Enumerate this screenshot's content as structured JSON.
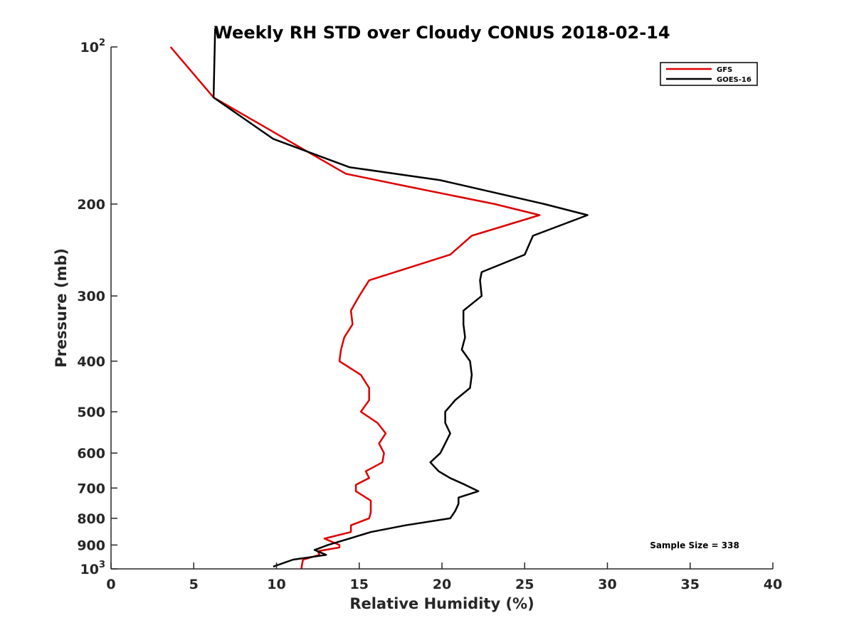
{
  "chart_data": {
    "type": "line",
    "title": "Weekly RH STD over Cloudy CONUS 2018-02-14",
    "xlabel": "Relative Humidity (%)",
    "ylabel": "Pressure (mb)",
    "xlim": [
      0,
      40
    ],
    "ylim": [
      100,
      1000
    ],
    "y_scale": "log",
    "y_reversed": true,
    "xticks": [
      0,
      5,
      10,
      15,
      20,
      25,
      30,
      35,
      40
    ],
    "yticks": [
      {
        "value": 100,
        "base": "10",
        "exp": "2"
      },
      {
        "value": 200,
        "label": "200"
      },
      {
        "value": 300,
        "label": "300"
      },
      {
        "value": 400,
        "label": "400"
      },
      {
        "value": 500,
        "label": "500"
      },
      {
        "value": 600,
        "label": "600"
      },
      {
        "value": 700,
        "label": "700"
      },
      {
        "value": 800,
        "label": "800"
      },
      {
        "value": 900,
        "label": "900"
      },
      {
        "value": 1000,
        "base": "10",
        "exp": "3"
      }
    ],
    "grid": false,
    "legend_position": "top-right",
    "annotation": "Sample Size = 338",
    "series": [
      {
        "name": "GFS",
        "color": "#dd0000",
        "points": [
          [
            3.6,
            100
          ],
          [
            6.2,
            125
          ],
          [
            14.2,
            175
          ],
          [
            17.9,
            185
          ],
          [
            23.2,
            200
          ],
          [
            25.9,
            210
          ],
          [
            21.8,
            230
          ],
          [
            20.5,
            250
          ],
          [
            15.6,
            280
          ],
          [
            15.0,
            300
          ],
          [
            14.5,
            320
          ],
          [
            14.6,
            340
          ],
          [
            14.1,
            360
          ],
          [
            13.9,
            380
          ],
          [
            13.8,
            400
          ],
          [
            15.1,
            425
          ],
          [
            15.6,
            450
          ],
          [
            15.6,
            475
          ],
          [
            15.1,
            500
          ],
          [
            16.1,
            525
          ],
          [
            16.6,
            550
          ],
          [
            16.2,
            575
          ],
          [
            16.5,
            600
          ],
          [
            16.4,
            625
          ],
          [
            15.4,
            650
          ],
          [
            15.6,
            670
          ],
          [
            14.8,
            690
          ],
          [
            14.8,
            710
          ],
          [
            15.7,
            740
          ],
          [
            15.7,
            760
          ],
          [
            15.7,
            780
          ],
          [
            15.6,
            800
          ],
          [
            14.5,
            825
          ],
          [
            14.5,
            850
          ],
          [
            12.9,
            875
          ],
          [
            13.8,
            900
          ],
          [
            13.8,
            910
          ],
          [
            12.5,
            925
          ],
          [
            12.6,
            940
          ],
          [
            11.6,
            960
          ],
          [
            11.5,
            1000
          ]
        ]
      },
      {
        "name": "GOES-16",
        "color": "#000000",
        "points": [
          [
            6.3,
            90
          ],
          [
            6.2,
            125
          ],
          [
            9.8,
            150
          ],
          [
            14.4,
            170
          ],
          [
            19.9,
            180
          ],
          [
            26.2,
            200
          ],
          [
            28.8,
            210
          ],
          [
            25.5,
            230
          ],
          [
            25.0,
            250
          ],
          [
            22.4,
            270
          ],
          [
            22.3,
            280
          ],
          [
            22.4,
            300
          ],
          [
            21.3,
            320
          ],
          [
            21.3,
            340
          ],
          [
            21.4,
            360
          ],
          [
            21.2,
            380
          ],
          [
            21.7,
            400
          ],
          [
            21.8,
            425
          ],
          [
            21.7,
            450
          ],
          [
            20.8,
            475
          ],
          [
            20.2,
            500
          ],
          [
            20.2,
            525
          ],
          [
            20.5,
            550
          ],
          [
            20.2,
            575
          ],
          [
            19.9,
            600
          ],
          [
            19.3,
            625
          ],
          [
            19.8,
            650
          ],
          [
            20.5,
            670
          ],
          [
            21.4,
            690
          ],
          [
            22.2,
            710
          ],
          [
            21.0,
            730
          ],
          [
            21.0,
            750
          ],
          [
            20.8,
            775
          ],
          [
            20.5,
            800
          ],
          [
            17.8,
            825
          ],
          [
            15.7,
            850
          ],
          [
            14.4,
            875
          ],
          [
            13.1,
            900
          ],
          [
            12.3,
            920
          ],
          [
            13.0,
            940
          ],
          [
            11.0,
            960
          ],
          [
            9.8,
            990
          ]
        ]
      }
    ]
  }
}
